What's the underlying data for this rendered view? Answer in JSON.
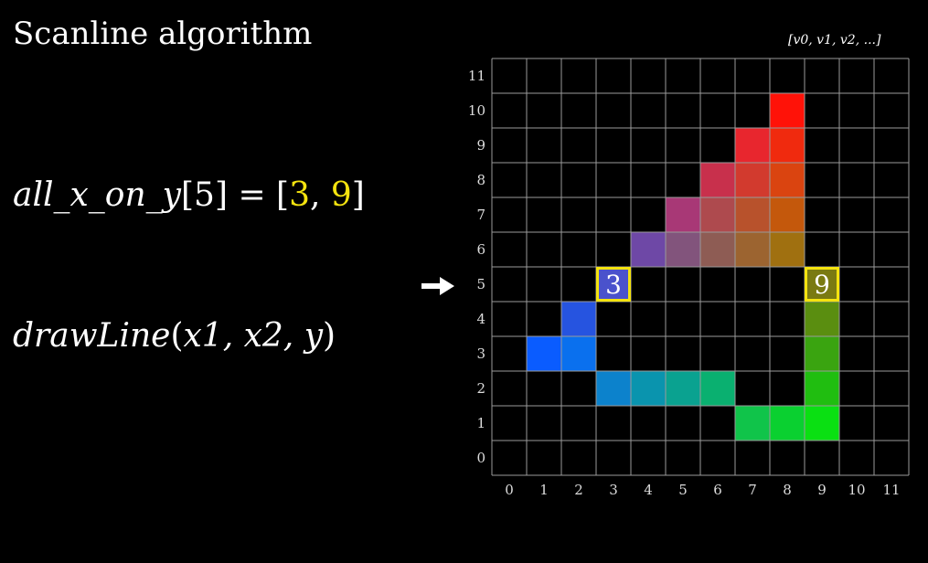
{
  "title": "Scanline algorithm",
  "vertex_list_label": "[v0, v1, v2, ...]",
  "equation1": {
    "name": "all_x_on_y",
    "open": "[5] = [",
    "x1": "3",
    "sep": ", ",
    "x2": "9",
    "close": "]"
  },
  "equation2": {
    "name": "drawLine",
    "open": "(",
    "args": "x1, x2, y",
    "close": ")"
  },
  "grid": {
    "x_labels": [
      "0",
      "1",
      "2",
      "3",
      "4",
      "5",
      "6",
      "7",
      "8",
      "9",
      "10",
      "11"
    ],
    "y_labels": [
      "0",
      "1",
      "2",
      "3",
      "4",
      "5",
      "6",
      "7",
      "8",
      "9",
      "10",
      "11"
    ],
    "current_row": 5,
    "highlight_color": "#f4e30f",
    "cells": [
      {
        "x": 8,
        "y": 10,
        "color": "#ff1208"
      },
      {
        "x": 7,
        "y": 9,
        "color": "#e8262e"
      },
      {
        "x": 8,
        "y": 9,
        "color": "#f02a0e"
      },
      {
        "x": 6,
        "y": 8,
        "color": "#c8304c"
      },
      {
        "x": 7,
        "y": 8,
        "color": "#d23a2e"
      },
      {
        "x": 8,
        "y": 8,
        "color": "#da4410"
      },
      {
        "x": 5,
        "y": 7,
        "color": "#a83876"
      },
      {
        "x": 6,
        "y": 7,
        "color": "#ae4a4e"
      },
      {
        "x": 7,
        "y": 7,
        "color": "#b8522c"
      },
      {
        "x": 8,
        "y": 7,
        "color": "#c4580c"
      },
      {
        "x": 4,
        "y": 6,
        "color": "#6e48a6"
      },
      {
        "x": 5,
        "y": 6,
        "color": "#82547c"
      },
      {
        "x": 6,
        "y": 6,
        "color": "#8e5c54"
      },
      {
        "x": 7,
        "y": 6,
        "color": "#9c6430"
      },
      {
        "x": 8,
        "y": 6,
        "color": "#a07010"
      },
      {
        "x": 3,
        "y": 5,
        "color": "#4a52cc"
      },
      {
        "x": 9,
        "y": 5,
        "color": "#7a7a12"
      },
      {
        "x": 2,
        "y": 4,
        "color": "#2654e0"
      },
      {
        "x": 9,
        "y": 4,
        "color": "#5a8e10"
      },
      {
        "x": 1,
        "y": 3,
        "color": "#0a5cff"
      },
      {
        "x": 2,
        "y": 3,
        "color": "#0a70ee"
      },
      {
        "x": 9,
        "y": 3,
        "color": "#3aa410"
      },
      {
        "x": 3,
        "y": 2,
        "color": "#0c82cc"
      },
      {
        "x": 4,
        "y": 2,
        "color": "#0a94ae"
      },
      {
        "x": 5,
        "y": 2,
        "color": "#0aa290"
      },
      {
        "x": 6,
        "y": 2,
        "color": "#0ab070"
      },
      {
        "x": 9,
        "y": 2,
        "color": "#20be10"
      },
      {
        "x": 7,
        "y": 1,
        "color": "#10c44a"
      },
      {
        "x": 8,
        "y": 1,
        "color": "#0ad030"
      },
      {
        "x": 9,
        "y": 1,
        "color": "#0ae012"
      }
    ],
    "highlights": [
      {
        "x": 3,
        "y": 5,
        "label": "3"
      },
      {
        "x": 9,
        "y": 5,
        "label": "9"
      }
    ]
  }
}
